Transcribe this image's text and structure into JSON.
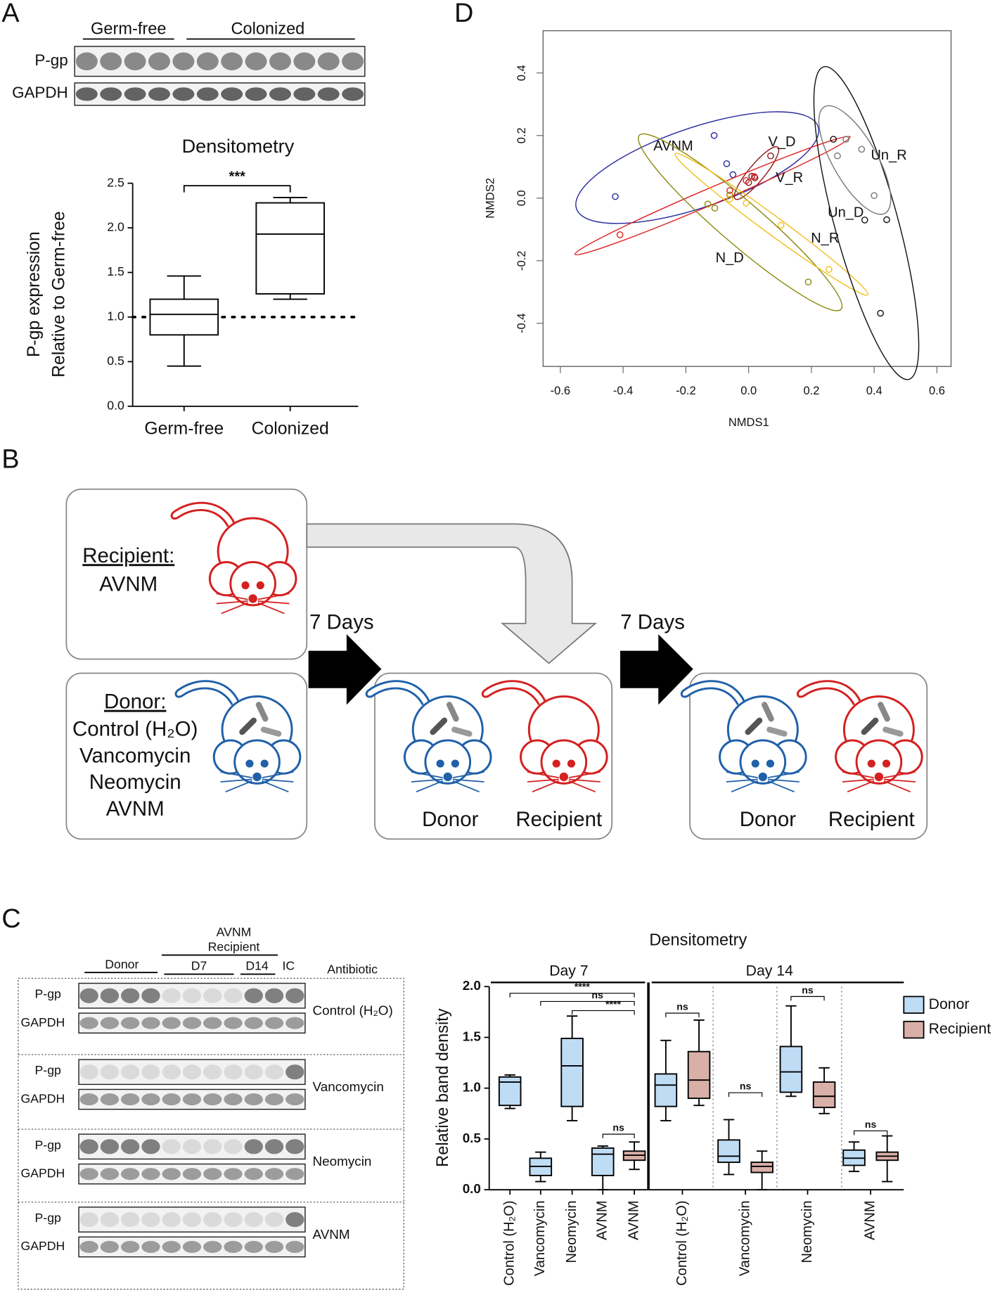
{
  "panel_labels": {
    "a": "A",
    "b": "B",
    "c": "C",
    "d": "D"
  },
  "blot_a": {
    "groups": [
      "Germ-free",
      "Colonized"
    ],
    "rows": [
      "P-gp",
      "GAPDH"
    ]
  },
  "diagram": {
    "recipient": {
      "heading": "Recipient:",
      "items": [
        "AVNM"
      ]
    },
    "donor": {
      "heading": "Donor:",
      "items": [
        "Control (H₂O)",
        "Vancomycin",
        "Neomycin",
        "AVNM"
      ]
    },
    "interval": "7 Days",
    "labels": [
      "Donor",
      "Recipient"
    ]
  },
  "blot_c": {
    "donor": "Donor",
    "recipient": [
      "AVNM",
      "Recipient"
    ],
    "d7": "D7",
    "d14": "D14",
    "ic": "IC",
    "antibiotic": "Antibiotic",
    "rows": [
      "P-gp",
      "GAPDH"
    ],
    "antibiotics": [
      "Control (H₂O)",
      "Vancomycin",
      "Neomycin",
      "AVNM"
    ]
  },
  "chart_data": [
    {
      "type": "box",
      "title": "Densitometry",
      "ylabel": [
        "P-gp expression",
        "Relative to Germ-free"
      ],
      "categories": [
        "Germ-free",
        "Colonized"
      ],
      "color": "#ffffff",
      "boxes": [
        [
          0.45,
          0.8,
          1.03,
          1.2,
          1.46
        ],
        [
          1.2,
          1.26,
          1.93,
          2.28,
          2.34
        ]
      ],
      "ylim": [
        0,
        2.5
      ],
      "yticks": [
        {
          "value": 0,
          "label": "0.0"
        },
        {
          "value": 0.5,
          "label": "0.5"
        },
        {
          "value": 1,
          "label": "1.0"
        },
        {
          "value": 1.5,
          "label": "1.5"
        },
        {
          "value": 2,
          "label": "2.0"
        },
        {
          "value": 2.5,
          "label": "2.5"
        }
      ],
      "reference_line": 1,
      "annotation": "***"
    },
    {
      "type": "scatter",
      "xlabel": "NMDS1",
      "ylabel": "NMDS2",
      "xlim": [
        -0.655,
        0.645
      ],
      "ylim": [
        -0.538,
        0.535
      ],
      "xticks": [
        -0.6,
        -0.4,
        -0.2,
        {
          "value": 0,
          "label": "0.0"
        },
        0.2,
        0.4,
        0.6
      ],
      "yticks": [
        -0.4,
        -0.2,
        {
          "value": 0,
          "label": "0.0"
        },
        0.2,
        0.4
      ],
      "series": [
        {
          "name": "AVNM",
          "color": "#2a2aa0",
          "x": [
            -0.425,
            -0.11,
            -0.07,
            -0.05
          ],
          "y": [
            0.005,
            0.2,
            0.11,
            0.075
          ]
        },
        {
          "name": "V_D",
          "color": "#8b1a1a",
          "x": [
            0.07,
            0.02,
            0.0,
            0.01
          ],
          "y": [
            0.135,
            0.065,
            0.05,
            0.07
          ]
        },
        {
          "name": "V_R",
          "color": "#e02020",
          "x": [
            -0.41,
            0.018,
            -0.008,
            -0.06
          ],
          "y": [
            -0.117,
            0.069,
            0.056,
            0.024
          ]
        },
        {
          "name": "N_D",
          "color": "#8a8a10",
          "x": [
            -0.13,
            -0.108,
            0.19,
            -0.06
          ],
          "y": [
            -0.019,
            -0.032,
            -0.268,
            0.01
          ]
        },
        {
          "name": "N_R",
          "color": "#f0c020",
          "x": [
            -0.008,
            0.103,
            0.256,
            -0.06
          ],
          "y": [
            -0.016,
            -0.087,
            -0.228,
            -0.003
          ]
        },
        {
          "name": "Un_D",
          "color": "#111111",
          "x": [
            0.27,
            0.44,
            0.42,
            0.37
          ],
          "y": [
            0.188,
            -0.069,
            -0.368,
            -0.07
          ]
        },
        {
          "name": "Un_R",
          "color": "#777777",
          "x": [
            0.283,
            0.31,
            0.4,
            0.36
          ],
          "y": [
            0.135,
            0.188,
            0.008,
            0.156
          ]
        }
      ]
    },
    {
      "type": "box",
      "title": "Densitometry",
      "ylabel": "Relative band density",
      "sections": [
        "Day 7",
        "Day 14"
      ],
      "categories": [
        "Control (H₂O)",
        "Vancomycin",
        "Neomycin",
        "AVNM",
        "AVNM",
        "Control (H₂O)",
        "Vancomycin",
        "Neomycin",
        "AVNM"
      ],
      "series": [
        {
          "name": "Donor",
          "color": "#bfdcf5",
          "boxes": [
            [
              0.8,
              0.83,
              1.06,
              1.11,
              1.13
            ],
            [
              0.08,
              0.14,
              0.23,
              0.31,
              0.37
            ],
            [
              0.68,
              0.82,
              1.22,
              1.49,
              1.71
            ],
            [
              0.0,
              0.14,
              0.35,
              0.41,
              0.43
            ],
            null,
            [
              0.68,
              0.82,
              1.03,
              1.14,
              1.47
            ],
            [
              0.15,
              0.27,
              0.33,
              0.49,
              0.69
            ],
            [
              0.92,
              0.96,
              1.16,
              1.41,
              1.81
            ],
            [
              0.18,
              0.24,
              0.31,
              0.39,
              0.47
            ]
          ]
        },
        {
          "name": "Recipient",
          "color": "#d9b0a8",
          "boxes": [
            null,
            null,
            null,
            null,
            [
              0.2,
              0.29,
              0.34,
              0.38,
              0.47
            ],
            [
              0.83,
              0.9,
              1.08,
              1.36,
              1.67
            ],
            [
              0.0,
              0.17,
              0.23,
              0.27,
              0.38
            ],
            [
              0.75,
              0.81,
              0.92,
              1.06,
              1.2
            ],
            [
              0.08,
              0.29,
              0.33,
              0.37,
              0.53
            ]
          ]
        }
      ],
      "ylim": [
        0,
        2
      ],
      "yticks": [
        {
          "value": 0,
          "label": "0.0"
        },
        {
          "value": 0.5,
          "label": "0.5"
        },
        {
          "value": 1,
          "label": "1.0"
        },
        {
          "value": 1.5,
          "label": "1.5"
        },
        {
          "value": 2,
          "label": "2.0"
        }
      ],
      "annotations": [
        "****",
        "ns",
        "****",
        "ns",
        "ns",
        "ns",
        "ns",
        "ns"
      ],
      "legend": "right"
    }
  ]
}
